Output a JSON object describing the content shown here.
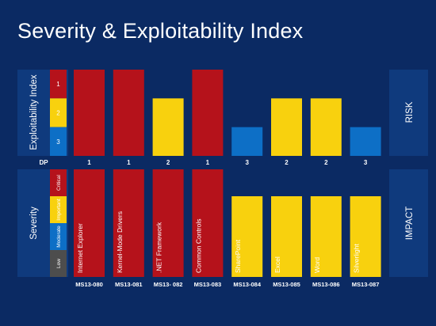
{
  "title": "Severity & Exploitability Index",
  "colors": {
    "background": "#0b2a63",
    "panel": "#0f3a7d",
    "critical": "#b5121b",
    "important": "#f8d10e",
    "moderate": "#0d6fc6",
    "low": "#4d4d4d",
    "white": "#ffffff"
  },
  "left_panels": {
    "exploitability_label": "Exploitability Index",
    "severity_label": "Severity",
    "dp_label": "DP"
  },
  "exploitability_scale": [
    {
      "label": "1",
      "level": "critical"
    },
    {
      "label": "2",
      "level": "important"
    },
    {
      "label": "3",
      "level": "moderate"
    }
  ],
  "severity_scale": [
    {
      "label": "Critical",
      "level": "critical"
    },
    {
      "label": "Important",
      "level": "important"
    },
    {
      "label": "Moderate",
      "level": "moderate"
    },
    {
      "label": "Low",
      "level": "low"
    }
  ],
  "right_panels": {
    "risk_label": "RISK",
    "impact_label": "IMPACT"
  },
  "chart_data": {
    "type": "bar",
    "categories": [
      "MS13-080",
      "MS13-081",
      "MS13- 082",
      "MS13-083",
      "MS13-084",
      "MS13-085",
      "MS13-086",
      "MS13-087"
    ],
    "products": [
      "Internet Explorer",
      "Kernel-Mode Drivers",
      ".NET Framework",
      "Common Controls",
      "SharePoint",
      "Excel",
      "Word",
      "Silverlight"
    ],
    "exploitability": [
      1,
      1,
      2,
      1,
      3,
      2,
      2,
      3
    ],
    "severity": [
      "Critical",
      "Critical",
      "Critical",
      "Critical",
      "Important",
      "Important",
      "Important",
      "Important"
    ],
    "exploitability_levels": [
      "1",
      "2",
      "3"
    ],
    "severity_levels": [
      "Critical",
      "Important",
      "Moderate",
      "Low"
    ]
  }
}
